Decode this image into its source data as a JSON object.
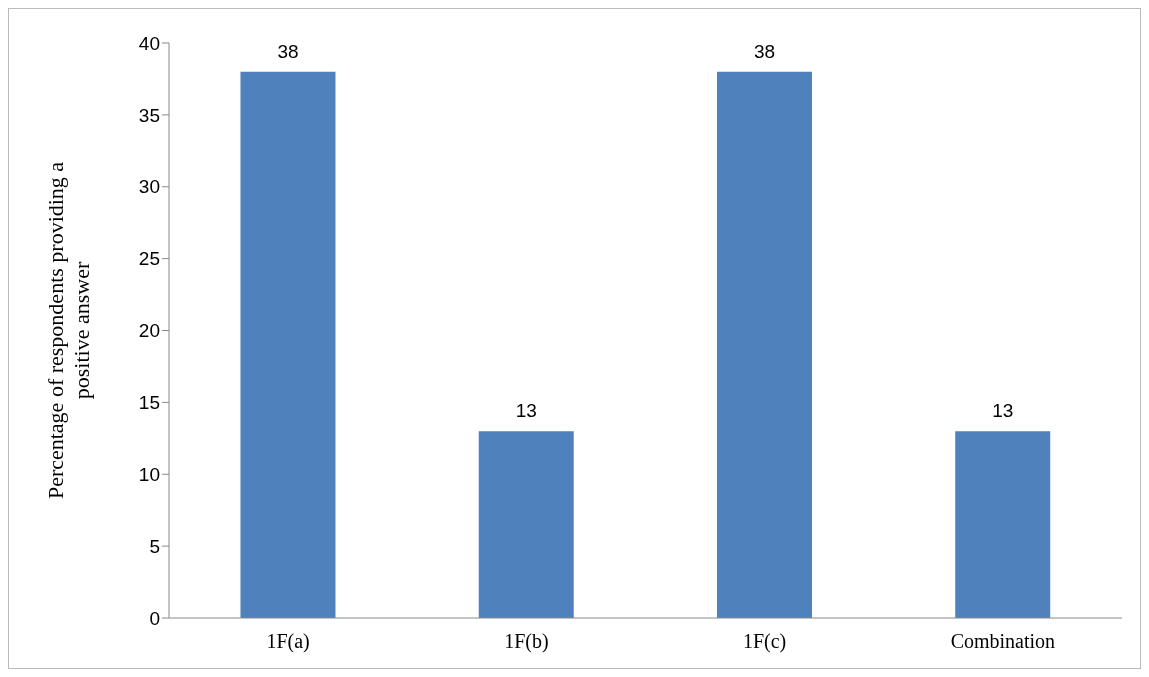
{
  "chart_data": {
    "type": "bar",
    "ylabel": "Percentage of respondents providing a positive answer",
    "categories": [
      "1F(a)",
      "1F(b)",
      "1F(c)",
      "Combination"
    ],
    "values": [
      38,
      13,
      38,
      13
    ],
    "color": "#4f81bd",
    "ylim": [
      0,
      40
    ],
    "yticks": [
      0,
      5,
      10,
      15,
      20,
      25,
      30,
      35,
      40
    ],
    "data_labels": true,
    "grid": false
  }
}
